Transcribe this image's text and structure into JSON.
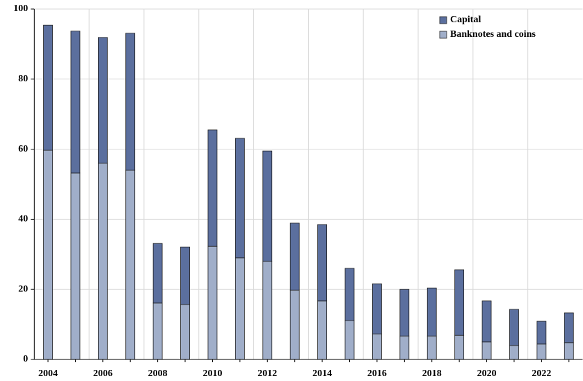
{
  "chart_data": {
    "type": "bar",
    "stacked": true,
    "categories": [
      "2004",
      null,
      "2006",
      null,
      "2008",
      null,
      "2010",
      null,
      "2012",
      null,
      "2014",
      null,
      "2016",
      null,
      "2018",
      null,
      "2020",
      null,
      "2022",
      null
    ],
    "series": [
      {
        "name": "Capital",
        "color": "#5b6f9e",
        "values": [
          35.7,
          40.5,
          35.9,
          39.1,
          17.0,
          16.4,
          33.2,
          34.1,
          31.5,
          19.1,
          21.8,
          14.9,
          14.3,
          13.3,
          13.7,
          18.7,
          11.7,
          10.3,
          6.5,
          8.5
        ]
      },
      {
        "name": "Banknotes and coins",
        "color": "#a0aec9",
        "values": [
          59.7,
          53.2,
          56.0,
          54.0,
          16.1,
          15.7,
          32.3,
          29.0,
          28.0,
          19.8,
          16.7,
          11.1,
          7.3,
          6.7,
          6.7,
          6.9,
          5.0,
          4.0,
          4.4,
          4.8
        ]
      }
    ],
    "ylim": [
      0,
      100
    ],
    "yticks": [
      0,
      20,
      40,
      60,
      80,
      100
    ],
    "grid": true,
    "legend": "upper right"
  }
}
